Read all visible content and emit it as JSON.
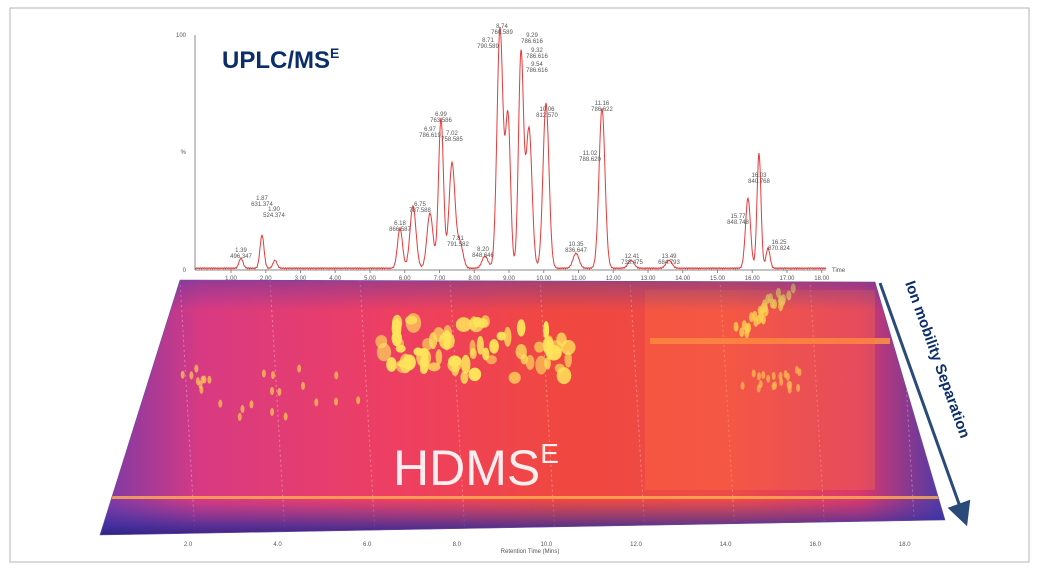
{
  "title": {
    "main": "UPLC/MS",
    "sup": "E"
  },
  "chromatogram": {
    "y_top": "100",
    "y_label": "%",
    "y_bottom": "0",
    "x_label": "Time",
    "xticks": [
      "1.00",
      "2.00",
      "3.00",
      "4.00",
      "5.00",
      "6.00",
      "7.00",
      "8.00",
      "9.00",
      "10.00",
      "11.00",
      "12.00",
      "13.00",
      "14.00",
      "15.00",
      "16.00",
      "17.00",
      "18.00"
    ],
    "peaks": [
      {
        "rt": "1.39",
        "mz": "496.347"
      },
      {
        "rt": "1.87",
        "mz": "631.374"
      },
      {
        "rt": "1.90",
        "mz": "524.374"
      },
      {
        "rt": "6.18",
        "mz": "866.587"
      },
      {
        "rt": "6.75",
        "mz": "787.588"
      },
      {
        "rt": "6.97",
        "mz": "786.619"
      },
      {
        "rt": "6.99",
        "mz": "763.586"
      },
      {
        "rt": "7.02",
        "mz": "758.585"
      },
      {
        "rt": "7.81",
        "mz": "791.582"
      },
      {
        "rt": "8.20",
        "mz": "848.646"
      },
      {
        "rt": "8.71",
        "mz": "790.589"
      },
      {
        "rt": "8.74",
        "mz": "760.589"
      },
      {
        "rt": "9.29",
        "mz": "786.616"
      },
      {
        "rt": "9.32",
        "mz": "786.616"
      },
      {
        "rt": "9.54",
        "mz": "786.616"
      },
      {
        "rt": "10.06",
        "mz": "812.570"
      },
      {
        "rt": "10.35",
        "mz": "836.647"
      },
      {
        "rt": "11.02",
        "mz": "788.620"
      },
      {
        "rt": "11.16",
        "mz": "786.622"
      },
      {
        "rt": "12.41",
        "mz": "738.475"
      },
      {
        "rt": "13.49",
        "mz": "684.793"
      },
      {
        "rt": "15.77",
        "mz": "848.748"
      },
      {
        "rt": "16.03",
        "mz": "840.768"
      },
      {
        "rt": "16.25",
        "mz": "870.824"
      }
    ]
  },
  "heatmap": {
    "label": "HDMS",
    "sup": "E",
    "x_label": "Retention Time (Mins)",
    "xticks": [
      "2.0",
      "4.0",
      "6.0",
      "8.0",
      "10.0",
      "12.0",
      "14.0",
      "16.0",
      "18.0"
    ],
    "arrow_label": "Ion mobility Separation"
  }
}
